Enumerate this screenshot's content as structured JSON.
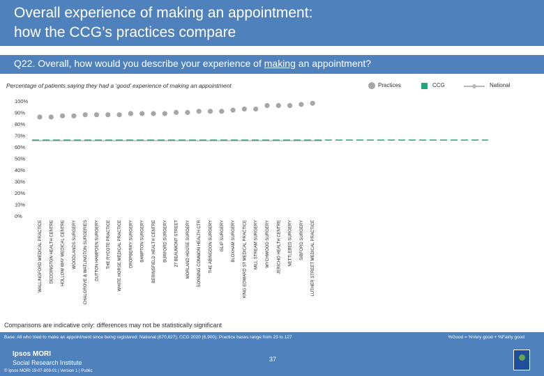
{
  "header": {
    "title_line1": "Overall experience of making an appointment:",
    "title_line2": "how the CCG’s practices compare"
  },
  "question": {
    "prefix": "Q22. Overall, how would you describe your experience of ",
    "emphasis": "making",
    "suffix": " an appointment?"
  },
  "legend": {
    "practices": "Practices",
    "ccg": "CCG",
    "national": "National"
  },
  "colors": {
    "brand_blue": "#4f81bd",
    "practice_dot": "#a6a6a6",
    "ccg_green": "#1fa67a",
    "national_line": "#b8b8b8"
  },
  "chart_data": {
    "type": "scatter",
    "title": "Percentage of patients saying they had a ‘good’ experience of making an appointment",
    "yticks": [
      "100%",
      "90%",
      "80%",
      "70%",
      "60%",
      "50%",
      "40%",
      "30%",
      "20%",
      "10%",
      "0%"
    ],
    "ylim": [
      0,
      100
    ],
    "grid": false,
    "legend_position": "top-right",
    "categories": [
      "WALLINGFORD MEDICAL PRACTICE",
      "DEDDINGTON HEALTH CENTRE",
      "HOLLOW WAY MEDICAL CENTRE",
      "WOODLANDS SURGERY",
      "CHALGROVE & WATLINGTON SURGERIES",
      "DUTTON HAMPDEN SURGERY",
      "THE RYCOTE PRACTICE",
      "WHITE HORSE MEDICAL PRACTICE",
      "DROPBERRY SURGERY",
      "BAMPTON SURGERY",
      "BERINSFIELD HEALTH CENTRE",
      "BURFORD SURGERY",
      "27 BEAUMONT STREET",
      "MORLAND HOUSE SURGERY",
      "SONNING COMMON HEALTH CTR",
      "THE ABINGDON SURGERY",
      "ISLIP SURGERY",
      "BLOXHAM SURGERY",
      "KING EDWARD ST MEDICAL PRACTICE",
      "MILL STREAM SURGERY",
      "WYCHWOOD SURGERY",
      "JERICHO HEALTH CENTRE",
      "NETTLEBED SURGERY",
      "SIBFORD SURGERY",
      "LUTHER STREET MEDICAL PRACTICE"
    ],
    "series": [
      {
        "name": "Practices",
        "values": [
          86,
          86,
          87,
          87,
          88,
          88,
          88,
          88,
          89,
          89,
          89,
          89,
          90,
          90,
          91,
          91,
          91,
          92,
          93,
          93,
          96,
          96,
          96,
          97,
          98
        ]
      }
    ],
    "ccg_value": 66,
    "national_value": 66
  },
  "footnote": "Comparisons are indicative only: differences may not be statistically significant",
  "footer": {
    "base": "Base: All who tried to make an appointment since being registered: National (670,827); CCG 2020 (6,900); Practice bases range from 23 to 127",
    "good_definition": "%Good = %Very good + %Fairly good",
    "logo_line1": "Ipsos MORI",
    "logo_line2": "Social Research Institute",
    "copyright": "© Ipsos MORI     19-07-809-01 | Version 1 | Public",
    "page_number": "37"
  }
}
